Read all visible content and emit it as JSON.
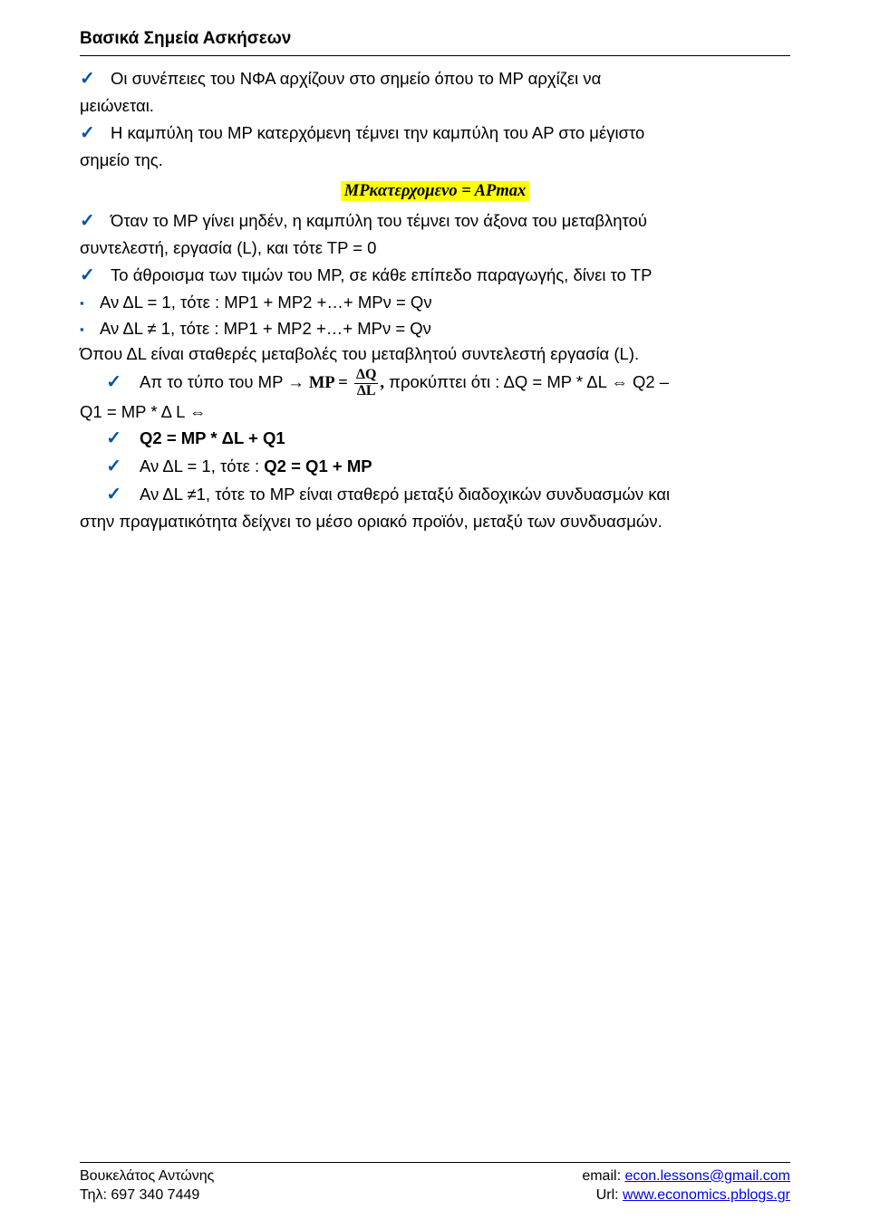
{
  "header": {
    "title": "Βασικά Σημεία Ασκήσεων"
  },
  "body": {
    "p1a": "Οι συνέπειες του ΝΦΑ αρχίζουν στο σημείο όπου το ΜΡ αρχίζει να",
    "p1b": "μειώνεται.",
    "p2a": "Η καμπύλη του ΜΡ κατερχόμενη τέμνει την καμπύλη του ΑΡ στο μέγιστο",
    "p2b": "σημείο της.",
    "eq1": "ΜΡκατερχομενο = ΑΡmax",
    "p3a": "Όταν το ΜΡ γίνει μηδέν, η καμπύλη του τέμνει τον άξονα του μεταβλητού",
    "p3b": "συντελεστή, εργασία (L), και τότε ΤΡ = 0",
    "p4a": "Το άθροισμα των τιμών του ΜΡ, σε κάθε επίπεδο παραγωγής, δίνει το ΤΡ",
    "sq1": "Αν ΔL = 1, τότε :    ΜΡ1 + ΜΡ2 +…+ ΜΡν = Qν",
    "sq2": "Αν ΔL ≠ 1, τότε :    ΜΡ1 + ΜΡ2 +…+ ΜΡν = Qν",
    "p5": "Όπου ΔL είναι σταθερές μεταβολές του μεταβλητού συντελεστή εργασία (L).",
    "p6a": "Απ το τύπο του ΜΡ → ",
    "p6_mp": "ΜΡ =",
    "p6_num": "ΔQ",
    "p6_den": "ΔL",
    "p6_comma": ",",
    "p6b": " προκύπτει ότι : ΔQ = ΜΡ * ΔL ⇔ Q2 –",
    "p6c": "Q1 = ΜΡ * Δ L ⇔",
    "p7": "Q2 = MP * ΔL + Q1",
    "p8a": "Αν ΔL = 1, τότε : ",
    "p8b": "Q2 = Q1 + MP",
    "p9a": "Αν ΔL ≠1, τότε το ΜΡ είναι σταθερό μεταξύ διαδοχικών συνδυασμών και",
    "p9b": "στην πραγματικότητα δείχνει το μέσο οριακό προϊόν, μεταξύ των συνδυασμών."
  },
  "footer": {
    "name": "Βουκελάτος Αντώνης",
    "phone_label": "Τηλ: 697 340 7449",
    "email_label": "email: ",
    "email": "econ.lessons@gmail.com",
    "url_label": "Url: ",
    "url": "www.economics.pblogs.gr"
  },
  "colors": {
    "accent": "#0054a5",
    "highlight": "#feff02",
    "link": "#0000ee",
    "text": "#000000",
    "background": "#ffffff"
  }
}
